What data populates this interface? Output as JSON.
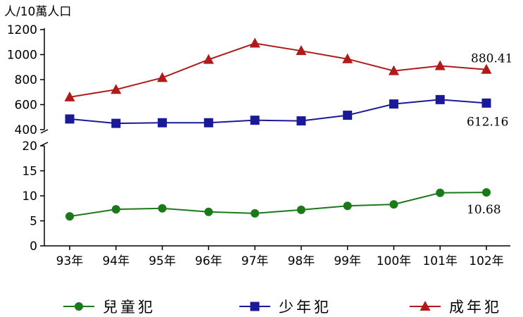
{
  "chart_data": {
    "type": "line",
    "unit_label": "人/10萬人口",
    "categories": [
      "93年",
      "94年",
      "95年",
      "96年",
      "97年",
      "98年",
      "99年",
      "100年",
      "101年",
      "102年"
    ],
    "upper_panel": {
      "ylim": [
        400,
        1200
      ],
      "yticks": [
        "400",
        "600",
        "800",
        "1000",
        "1200"
      ],
      "series": [
        {
          "name": "少年犯",
          "color": "#1a1a99",
          "marker": "square",
          "values": [
            485,
            450,
            455,
            455,
            475,
            470,
            515,
            605,
            640,
            612.16
          ],
          "end_label": "612.16"
        },
        {
          "name": "成年犯",
          "color": "#b01a1a",
          "marker": "triangle",
          "values": [
            660,
            720,
            815,
            960,
            1090,
            1030,
            965,
            870,
            910,
            880.41
          ],
          "end_label": "880.41"
        }
      ]
    },
    "lower_panel": {
      "ylim": [
        0,
        20
      ],
      "yticks": [
        "0",
        "5",
        "10",
        "15",
        "20"
      ],
      "series": [
        {
          "name": "兒童犯",
          "color": "#1a7a1a",
          "marker": "circle",
          "values": [
            5.9,
            7.3,
            7.5,
            6.8,
            6.5,
            7.2,
            8.0,
            8.3,
            10.6,
            10.68
          ],
          "end_label": "10.68"
        }
      ]
    },
    "legend": {
      "placement": "bottom",
      "items": [
        {
          "name": "兒童犯",
          "color": "#1a7a1a",
          "marker": "circle"
        },
        {
          "name": "少年犯",
          "color": "#1a1a99",
          "marker": "square"
        },
        {
          "name": "成年犯",
          "color": "#b01a1a",
          "marker": "triangle"
        }
      ]
    }
  }
}
